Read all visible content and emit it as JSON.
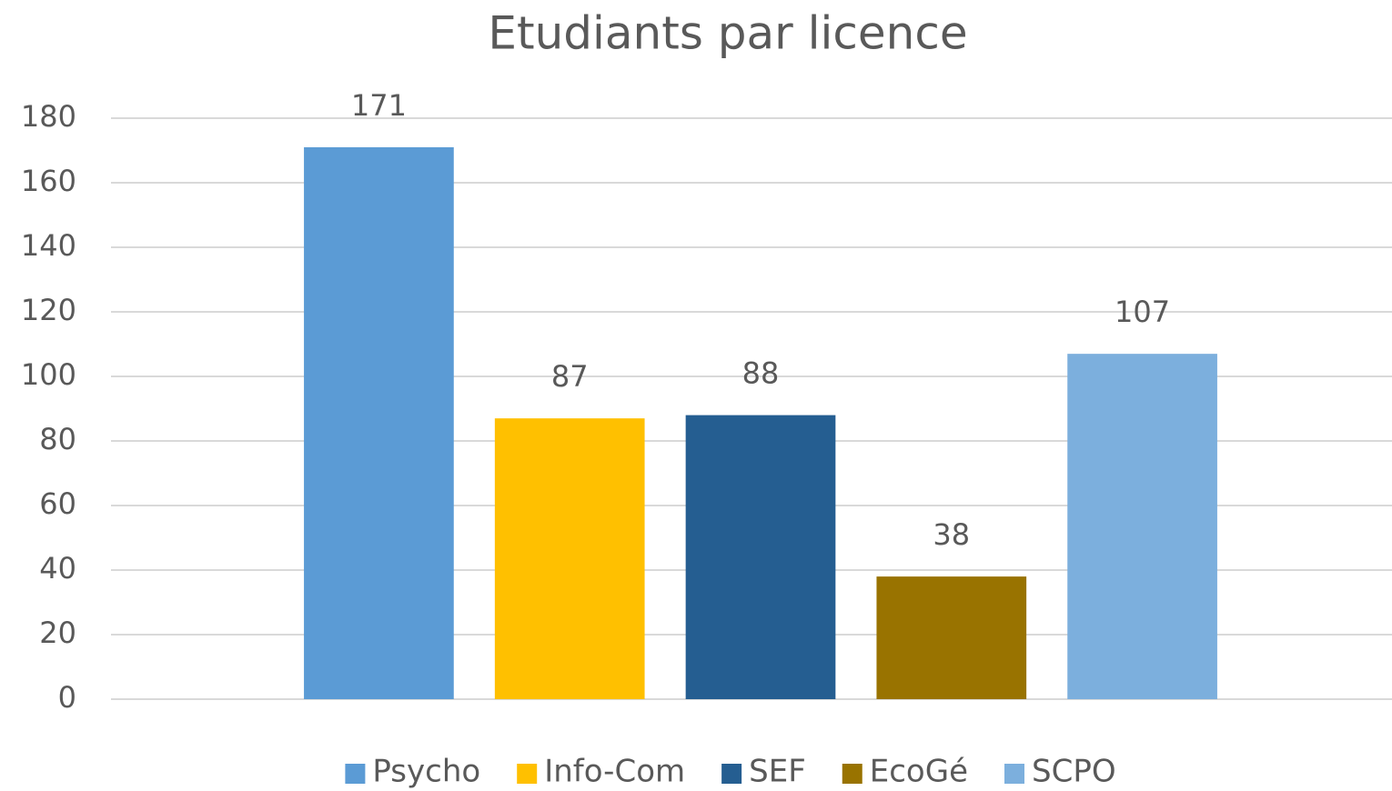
{
  "chart_data": {
    "type": "bar",
    "title": "Etudiants par licence",
    "categories": [
      null
    ],
    "series": [
      {
        "name": "Psycho",
        "color": "#5b9bd5",
        "values": [
          171
        ]
      },
      {
        "name": "Info-Com",
        "color": "#ffc000",
        "values": [
          87
        ]
      },
      {
        "name": "SEF",
        "color": "#255e91",
        "values": [
          88
        ]
      },
      {
        "name": "EcoGé",
        "color": "#997300",
        "values": [
          38
        ]
      },
      {
        "name": "SCPO",
        "color": "#7cafdd",
        "values": [
          107
        ]
      }
    ],
    "ylim": [
      0,
      180
    ],
    "yticks": [
      0,
      20,
      40,
      60,
      80,
      100,
      120,
      140,
      160,
      180
    ],
    "grid": true,
    "legend": "bottom"
  }
}
